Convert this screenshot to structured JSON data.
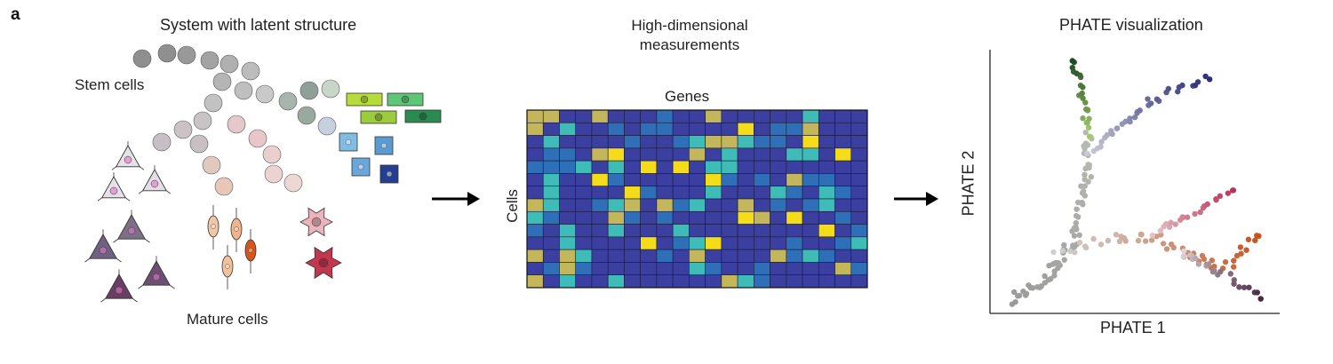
{
  "panel_label": "a",
  "left_panel": {
    "title": "System with latent structure",
    "stem_label": "Stem cells",
    "mature_label": "Mature cells"
  },
  "middle_panel": {
    "title": "High-dimensional measurements",
    "genes_label": "Genes",
    "cells_label": "Cells"
  },
  "right_panel": {
    "title": "PHATE visualization",
    "xlabel": "PHATE 1",
    "ylabel": "PHATE 2"
  },
  "arrows": [
    "right-arrow-icon",
    "right-arrow-icon"
  ],
  "colors": {
    "heat_low": "#3b3fa0",
    "heat_mid1": "#2f6fb8",
    "heat_mid2": "#3fbcb8",
    "heat_mid3": "#c4b65a",
    "heat_high": "#f4dc1a",
    "stem": "#8a8a8a",
    "branch_green": "#2f5e2a",
    "branch_blue": "#3a3f8f",
    "branch_red": "#b83456",
    "branch_orange": "#c9521c",
    "branch_purple": "#4a2741"
  }
}
